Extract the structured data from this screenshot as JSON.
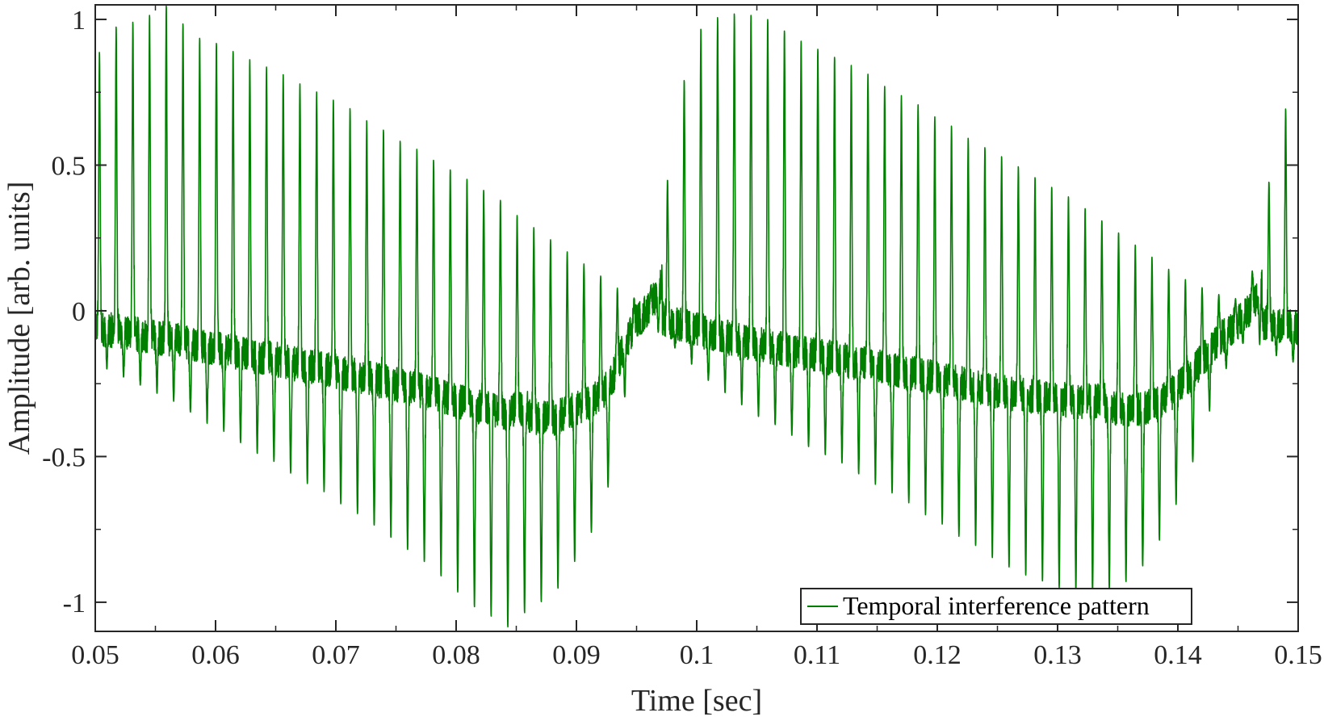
{
  "chart_data": {
    "type": "line",
    "xlabel": "Time [sec]",
    "ylabel": "Amplitude [arb. units]",
    "xlim": [
      0.05,
      0.15
    ],
    "ylim": [
      -1.1,
      1.05
    ],
    "grid": false,
    "legend_placement": "bottom-right",
    "x_ticks": [
      {
        "value": 0.05,
        "label": "0.05"
      },
      {
        "value": 0.06,
        "label": "0.06"
      },
      {
        "value": 0.07,
        "label": "0.07"
      },
      {
        "value": 0.08,
        "label": "0.08"
      },
      {
        "value": 0.09,
        "label": "0.09"
      },
      {
        "value": 0.1,
        "label": "0.1"
      },
      {
        "value": 0.11,
        "label": "0.11"
      },
      {
        "value": 0.12,
        "label": "0.12"
      },
      {
        "value": 0.13,
        "label": "0.13"
      },
      {
        "value": 0.14,
        "label": "0.14"
      },
      {
        "value": 0.15,
        "label": "0.15"
      }
    ],
    "y_ticks": [
      {
        "value": 1,
        "label": "1"
      },
      {
        "value": 0.5,
        "label": "0.5"
      },
      {
        "value": 0,
        "label": "0"
      },
      {
        "value": -0.5,
        "label": "-0.5"
      },
      {
        "value": -1,
        "label": "-1"
      }
    ],
    "series": [
      {
        "name": "Temporal interference pattern",
        "color": "#007f00",
        "description_beat_period": 0.05,
        "x": [
          0.05,
          0.051,
          0.052,
          0.053,
          0.054,
          0.055,
          0.056,
          0.057,
          0.058,
          0.059,
          0.06,
          0.061,
          0.062,
          0.063,
          0.064,
          0.065,
          0.066,
          0.067,
          0.068,
          0.069,
          0.07,
          0.071,
          0.072,
          0.073,
          0.074,
          0.075,
          0.076,
          0.077,
          0.078,
          0.079,
          0.08,
          0.081,
          0.082,
          0.083,
          0.084,
          0.085,
          0.086,
          0.087,
          0.088,
          0.089,
          0.09,
          0.091,
          0.092,
          0.093,
          0.094,
          0.095,
          0.096,
          0.097,
          0.098,
          0.099,
          0.1,
          0.101,
          0.102,
          0.103,
          0.104,
          0.105,
          0.106,
          0.107,
          0.108,
          0.109,
          0.11,
          0.111,
          0.112,
          0.113,
          0.114,
          0.115,
          0.116,
          0.117,
          0.118,
          0.119,
          0.12,
          0.121,
          0.122,
          0.123,
          0.124,
          0.125,
          0.126,
          0.127,
          0.128,
          0.129,
          0.13,
          0.131,
          0.132,
          0.133,
          0.134,
          0.135,
          0.136,
          0.137,
          0.138,
          0.139,
          0.14,
          0.141,
          0.142,
          0.143,
          0.144,
          0.145,
          0.146,
          0.147,
          0.148,
          0.149,
          0.15
        ],
        "upper_envelope": [
          0.85,
          0.96,
          0.98,
          0.99,
          1.0,
          1.03,
          1.05,
          1.0,
          0.95,
          0.93,
          0.92,
          0.9,
          0.88,
          0.86,
          0.84,
          0.83,
          0.8,
          0.78,
          0.76,
          0.74,
          0.72,
          0.7,
          0.67,
          0.64,
          0.62,
          0.59,
          0.57,
          0.55,
          0.52,
          0.5,
          0.47,
          0.45,
          0.42,
          0.4,
          0.37,
          0.33,
          0.3,
          0.27,
          0.24,
          0.21,
          0.18,
          0.15,
          0.12,
          0.09,
          0.06,
          0.04,
          0.05,
          0.25,
          0.6,
          0.8,
          0.95,
          1.0,
          1.01,
          1.02,
          1.02,
          1.01,
          1.0,
          0.97,
          0.94,
          0.92,
          0.9,
          0.88,
          0.86,
          0.84,
          0.82,
          0.79,
          0.76,
          0.74,
          0.72,
          0.69,
          0.66,
          0.64,
          0.61,
          0.58,
          0.56,
          0.54,
          0.51,
          0.49,
          0.46,
          0.44,
          0.41,
          0.39,
          0.36,
          0.33,
          0.3,
          0.27,
          0.24,
          0.21,
          0.18,
          0.15,
          0.12,
          0.1,
          0.08,
          0.06,
          0.05,
          0.04,
          0.1,
          0.3,
          0.55,
          0.7,
          0.85
        ],
        "lower_envelope": [
          -0.18,
          -0.2,
          -0.22,
          -0.24,
          -0.26,
          -0.28,
          -0.3,
          -0.32,
          -0.35,
          -0.38,
          -0.4,
          -0.42,
          -0.45,
          -0.48,
          -0.5,
          -0.52,
          -0.55,
          -0.58,
          -0.6,
          -0.62,
          -0.65,
          -0.68,
          -0.7,
          -0.73,
          -0.76,
          -0.79,
          -0.82,
          -0.85,
          -0.88,
          -0.92,
          -0.96,
          -1.0,
          -1.03,
          -1.05,
          -1.1,
          -1.05,
          -1.03,
          -1.0,
          -0.98,
          -0.92,
          -0.85,
          -0.78,
          -0.7,
          -0.55,
          -0.3,
          -0.1,
          -0.05,
          -0.08,
          -0.12,
          -0.16,
          -0.2,
          -0.24,
          -0.27,
          -0.3,
          -0.33,
          -0.36,
          -0.38,
          -0.4,
          -0.43,
          -0.46,
          -0.48,
          -0.5,
          -0.52,
          -0.55,
          -0.57,
          -0.6,
          -0.62,
          -0.64,
          -0.67,
          -0.7,
          -0.72,
          -0.75,
          -0.78,
          -0.8,
          -0.83,
          -0.86,
          -0.88,
          -0.9,
          -0.92,
          -0.93,
          -0.95,
          -0.96,
          -0.97,
          -0.97,
          -0.96,
          -0.95,
          -0.92,
          -0.88,
          -0.82,
          -0.75,
          -0.65,
          -0.55,
          -0.42,
          -0.3,
          -0.2,
          -0.12,
          -0.1,
          -0.12,
          -0.15,
          -0.17,
          -0.18
        ]
      }
    ]
  }
}
